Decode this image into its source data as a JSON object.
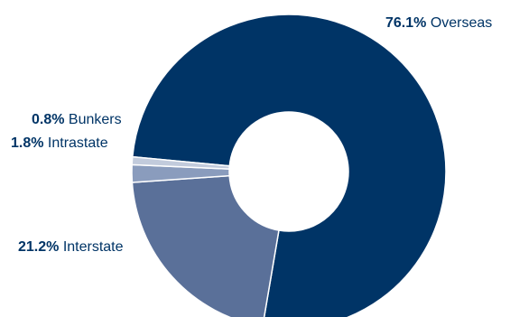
{
  "chart_data": {
    "type": "pie",
    "donut": true,
    "slices": [
      {
        "name": "Overseas",
        "value": 76.1,
        "percent_label": "76.1%",
        "color": "#003466"
      },
      {
        "name": "Interstate",
        "value": 21.2,
        "percent_label": "21.2%",
        "color": "#5a7099"
      },
      {
        "name": "Intrastate",
        "value": 1.8,
        "percent_label": "1.8%",
        "color": "#8a9cbd"
      },
      {
        "name": "Bunkers",
        "value": 0.8,
        "percent_label": "0.8%",
        "color": "#c2cbdc"
      }
    ],
    "text_color": "#003466",
    "background": "#ffffff"
  }
}
